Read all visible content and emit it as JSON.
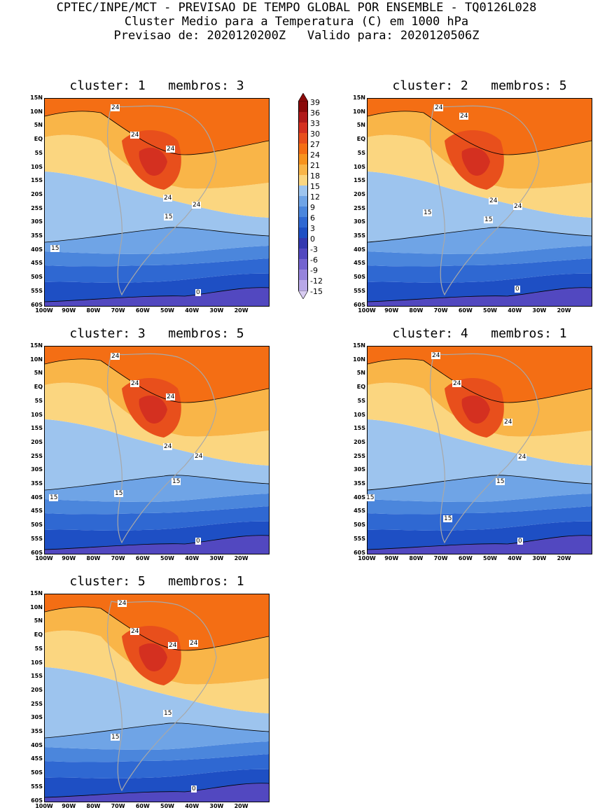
{
  "header": {
    "line1": "CPTEC/INPE/MCT - PREVISAO DE TEMPO GLOBAL POR ENSEMBLE - TQ0126L028",
    "line2": "Cluster Medio para a Temperatura (C) em 1000 hPa",
    "line3": "Previsao de: 2020120200Z   Valido para: 2020120506Z"
  },
  "axes": {
    "lat_ticks": [
      "15N",
      "10N",
      "5N",
      "EQ",
      "5S",
      "10S",
      "15S",
      "20S",
      "25S",
      "30S",
      "35S",
      "40S",
      "45S",
      "50S",
      "55S",
      "60S"
    ],
    "lon_ticks": [
      "100W",
      "90W",
      "80W",
      "70W",
      "60W",
      "50W",
      "40W",
      "30W",
      "20W"
    ]
  },
  "colorbar": {
    "levels": [
      "39",
      "36",
      "33",
      "30",
      "27",
      "24",
      "21",
      "18",
      "15",
      "12",
      "9",
      "6",
      "3",
      "0",
      "-3",
      "-6",
      "-9",
      "-12",
      "-15"
    ],
    "colors": [
      "#8b0a0a",
      "#b01a1a",
      "#d43020",
      "#e84f1c",
      "#f46e14",
      "#f7931e",
      "#f9b548",
      "#fbd680",
      "#9dc4ee",
      "#6fa4e6",
      "#4b86dc",
      "#2f68d2",
      "#1e4fc4",
      "#3338b0",
      "#5248c0",
      "#7464d0",
      "#9684dc",
      "#b8a8e8",
      "#d8ccf2"
    ]
  },
  "panels": [
    {
      "title": "cluster: 1   membros: 3",
      "labels": [
        "24",
        "24",
        "24",
        "24",
        "24",
        "15",
        "15",
        "0"
      ]
    },
    {
      "title": "cluster: 2   membros: 5",
      "labels": [
        "24",
        "24",
        "24",
        "24",
        "15",
        "15",
        "0"
      ]
    },
    {
      "title": "cluster: 3   membros: 5",
      "labels": [
        "24",
        "24",
        "24",
        "24",
        "24",
        "15",
        "15",
        "15",
        "0"
      ]
    },
    {
      "title": "cluster: 4   membros: 1",
      "labels": [
        "24",
        "24",
        "24",
        "24",
        "15",
        "15",
        "15",
        "0"
      ]
    },
    {
      "title": "cluster: 5   membros: 1",
      "labels": [
        "24",
        "24",
        "24",
        "24",
        "15",
        "15",
        "0"
      ]
    }
  ]
}
